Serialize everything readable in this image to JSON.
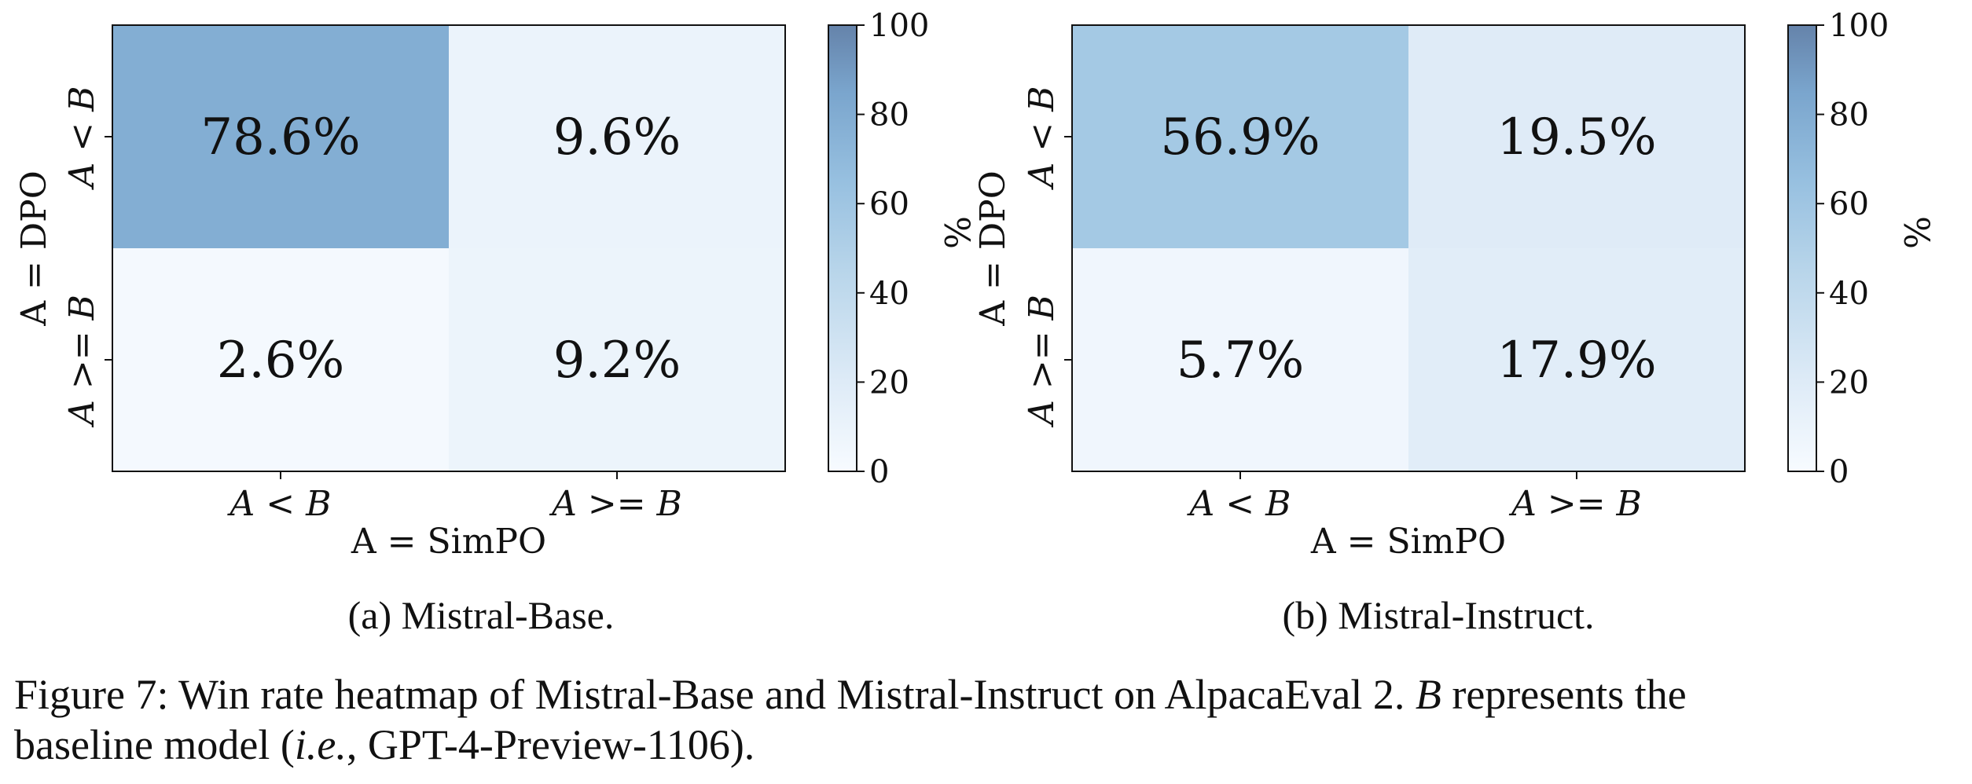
{
  "chart_data": [
    {
      "type": "heatmap",
      "subcaption": "(a) Mistral-Base.",
      "xlabel": "A = SimPO",
      "ylabel": "A = DPO",
      "x_categories": [
        "A < B",
        "A >= B"
      ],
      "y_categories": [
        "A < B",
        "A >= B"
      ],
      "values": [
        [
          78.6,
          9.6
        ],
        [
          2.6,
          9.2
        ]
      ],
      "value_labels": [
        [
          "78.6%",
          "9.6%"
        ],
        [
          "2.6%",
          "9.2%"
        ]
      ],
      "colorbar": {
        "label": "%",
        "min": 0,
        "max": 100,
        "ticks": [
          "0",
          "20",
          "40",
          "60",
          "80",
          "100"
        ]
      }
    },
    {
      "type": "heatmap",
      "subcaption": "(b) Mistral-Instruct.",
      "xlabel": "A = SimPO",
      "ylabel": "A = DPO",
      "x_categories": [
        "A < B",
        "A >= B"
      ],
      "y_categories": [
        "A < B",
        "A >= B"
      ],
      "values": [
        [
          56.9,
          19.5
        ],
        [
          5.7,
          17.9
        ]
      ],
      "value_labels": [
        [
          "56.9%",
          "19.5%"
        ],
        [
          "5.7%",
          "17.9%"
        ]
      ],
      "colorbar": {
        "label": "%",
        "min": 0,
        "max": 100,
        "ticks": [
          "0",
          "20",
          "40",
          "60",
          "80",
          "100"
        ]
      }
    }
  ],
  "caption": {
    "line1_prefix": "Figure 7: Win rate heatmap of Mistral-Base and Mistral-Instruct on AlpacaEval 2. ",
    "line1_var": "B",
    "line1_suffix": " represents the",
    "line2_prefix": "baseline model (",
    "line2_ie": "i.e.",
    "line2_suffix": ", GPT-4-Preview-1106)."
  },
  "colors": {
    "low": "#f7fbff",
    "mid": "#9fc6e4",
    "high": "#6689b0"
  }
}
